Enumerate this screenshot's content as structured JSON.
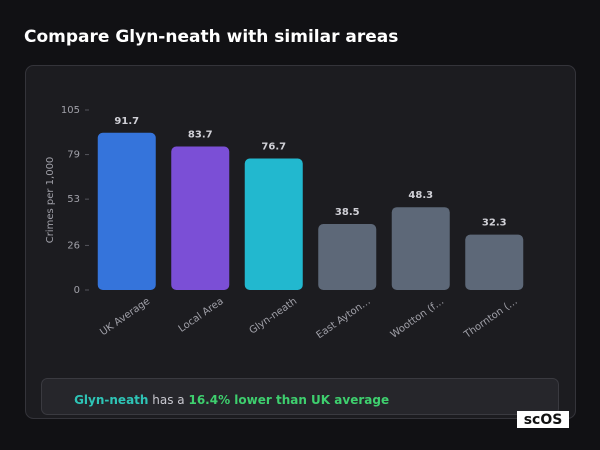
{
  "chart_data": {
    "type": "bar",
    "title": "Compare Glyn-neath with similar areas",
    "y_label": "Crimes per 1,000",
    "categories": [
      "UK Average",
      "Local Area",
      "Glyn-neath",
      "East Ayton…",
      "Wootton (f…",
      "Thornton (…"
    ],
    "values": [
      91.7,
      83.7,
      76.7,
      38.5,
      48.3,
      32.3
    ],
    "colors": [
      "#3574db",
      "#7b4fd6",
      "#22b8cf",
      "#5d6878",
      "#5d6878",
      "#5d6878"
    ],
    "ylim": [
      0,
      105
    ],
    "yticks": [
      0,
      26,
      53,
      79,
      105
    ],
    "grid": false
  },
  "summary": {
    "place": "Glyn-neath",
    "middle": " has a ",
    "highlight": "16.4% lower than UK average"
  },
  "logo": "scOS"
}
